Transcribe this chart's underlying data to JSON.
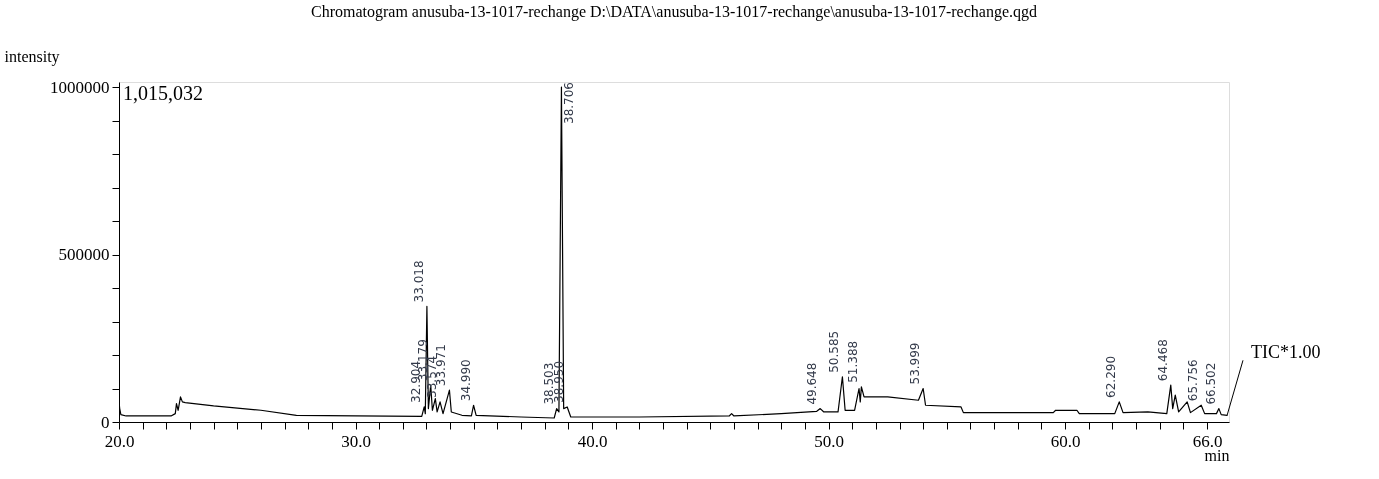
{
  "chart_data": {
    "type": "line",
    "title": "Chromatogram anusuba-13-1017-rechange D:\\DATA\\anusuba-13-1017-rechange\\anusuba-13-1017-rechange.qgd",
    "xlabel": "min",
    "ylabel": "intensity",
    "x": [
      20.0,
      20.03,
      20.08,
      20.3,
      22.2,
      22.38,
      22.43,
      22.5,
      22.6,
      22.68,
      22.8,
      24,
      26,
      27.5,
      30,
      32.8,
      32.904,
      32.95,
      33.018,
      33.08,
      33.179,
      33.25,
      33.374,
      33.45,
      33.574,
      33.7,
      33.971,
      34.05,
      34.5,
      34.9,
      34.99,
      35.1,
      37,
      38.4,
      38.503,
      38.6,
      38.706,
      38.8,
      38.95,
      39.1,
      42,
      45.8,
      45.9,
      46.0,
      48,
      49.5,
      49.648,
      49.8,
      50.4,
      50.585,
      50.7,
      51.1,
      51.288,
      51.34,
      51.388,
      51.5,
      52.5,
      53.8,
      53.999,
      54.1,
      55.6,
      55.7,
      59.5,
      59.6,
      60.5,
      60.6,
      62.1,
      62.29,
      62.45,
      63.5,
      64.3,
      64.468,
      64.55,
      64.658,
      64.8,
      65.162,
      65.3,
      65.756,
      65.9,
      66.4,
      66.502,
      66.6,
      66.85
    ],
    "series": [
      {
        "color": "#000000",
        "values": [
          60000,
          40000,
          22000,
          18000,
          18000,
          25000,
          55000,
          35000,
          75000,
          60000,
          58000,
          48000,
          35000,
          20000,
          18000,
          17000,
          45000,
          25000,
          345000,
          40000,
          110000,
          35000,
          70000,
          30000,
          60000,
          25000,
          95000,
          30000,
          20000,
          18000,
          50000,
          20000,
          15000,
          12000,
          40000,
          30000,
          1000000,
          40000,
          45000,
          15000,
          15000,
          18000,
          25000,
          18000,
          25000,
          32000,
          40000,
          30000,
          30000,
          135000,
          35000,
          35000,
          100000,
          60000,
          105000,
          75000,
          75000,
          65000,
          100000,
          50000,
          45000,
          28000,
          28000,
          35000,
          35000,
          25000,
          25000,
          60000,
          28000,
          30000,
          25000,
          110000,
          40000,
          80000,
          30000,
          60000,
          28000,
          50000,
          25000,
          25000,
          40000,
          22000,
          20000
        ]
      }
    ],
    "xlim": [
      20,
      66.93
    ],
    "ylim": [
      0,
      1015032
    ],
    "xticks": [
      {
        "value": 20,
        "label": "20.0"
      },
      {
        "value": 21,
        "label": null
      },
      {
        "value": 22,
        "label": null
      },
      {
        "value": 23,
        "label": null
      },
      {
        "value": 24,
        "label": null
      },
      {
        "value": 25,
        "label": null
      },
      {
        "value": 26,
        "label": null
      },
      {
        "value": 27,
        "label": null
      },
      {
        "value": 28,
        "label": null
      },
      {
        "value": 29,
        "label": null
      },
      {
        "value": 30,
        "label": "30.0"
      },
      {
        "value": 31,
        "label": null
      },
      {
        "value": 32,
        "label": null
      },
      {
        "value": 33,
        "label": null
      },
      {
        "value": 34,
        "label": null
      },
      {
        "value": 35,
        "label": null
      },
      {
        "value": 36,
        "label": null
      },
      {
        "value": 37,
        "label": null
      },
      {
        "value": 38,
        "label": null
      },
      {
        "value": 39,
        "label": null
      },
      {
        "value": 40,
        "label": "40.0"
      },
      {
        "value": 41,
        "label": null
      },
      {
        "value": 42,
        "label": null
      },
      {
        "value": 43,
        "label": null
      },
      {
        "value": 44,
        "label": null
      },
      {
        "value": 45,
        "label": null
      },
      {
        "value": 46,
        "label": null
      },
      {
        "value": 47,
        "label": null
      },
      {
        "value": 48,
        "label": null
      },
      {
        "value": 49,
        "label": null
      },
      {
        "value": 50,
        "label": "50.0"
      },
      {
        "value": 51,
        "label": null
      },
      {
        "value": 52,
        "label": null
      },
      {
        "value": 53,
        "label": null
      },
      {
        "value": 54,
        "label": null
      },
      {
        "value": 55,
        "label": null
      },
      {
        "value": 56,
        "label": null
      },
      {
        "value": 57,
        "label": null
      },
      {
        "value": 58,
        "label": null
      },
      {
        "value": 59,
        "label": null
      },
      {
        "value": 60,
        "label": "60.0"
      },
      {
        "value": 61,
        "label": null
      },
      {
        "value": 62,
        "label": null
      },
      {
        "value": 63,
        "label": null
      },
      {
        "value": 64,
        "label": null
      },
      {
        "value": 65,
        "label": null
      },
      {
        "value": 66,
        "label": "66.0"
      }
    ],
    "yticks": [
      0,
      {
        "value": 100000,
        "label": null
      },
      {
        "value": 200000,
        "label": null
      },
      {
        "value": 300000,
        "label": null
      },
      {
        "value": 400000,
        "label": null
      },
      500000,
      {
        "value": 600000,
        "label": null
      },
      {
        "value": 700000,
        "label": null
      },
      {
        "value": 800000,
        "label": null
      },
      {
        "value": 900000,
        "label": null
      },
      1000000
    ],
    "grid": false,
    "marker": "none",
    "line_style": "solid",
    "annotations": [
      "1,015,032",
      {
        "text": "TIC*1.00",
        "x": 66.85,
        "y": 20000
      },
      {
        "text": "32.904",
        "x": 32.904,
        "y": 45000
      },
      {
        "text": "33.018",
        "x": 33.018,
        "y": 345000
      },
      {
        "text": "33.179",
        "x": 33.179,
        "y": 110000
      },
      {
        "text": "33.574",
        "x": 33.574,
        "y": 60000
      },
      {
        "text": "33.971",
        "x": 33.971,
        "y": 95000
      },
      {
        "text": "34.990",
        "x": 34.99,
        "y": 50000
      },
      {
        "text": "38.503",
        "x": 38.503,
        "y": 40000
      },
      {
        "text": "38.706",
        "x": 38.706,
        "y": 1000000
      },
      {
        "text": "38.950",
        "x": 38.95,
        "y": 45000
      },
      {
        "text": "49.648",
        "x": 49.648,
        "y": 40000
      },
      {
        "text": "50.585",
        "x": 50.585,
        "y": 135000
      },
      {
        "text": "51.388",
        "x": 51.388,
        "y": 105000
      },
      {
        "text": "53.999",
        "x": 53.999,
        "y": 100000
      },
      {
        "text": "62.290",
        "x": 62.29,
        "y": 60000
      },
      {
        "text": "64.468",
        "x": 64.468,
        "y": 110000
      },
      {
        "text": "65.756",
        "x": 65.756,
        "y": 50000
      },
      {
        "text": "66.502",
        "x": 66.502,
        "y": 40000
      }
    ]
  }
}
